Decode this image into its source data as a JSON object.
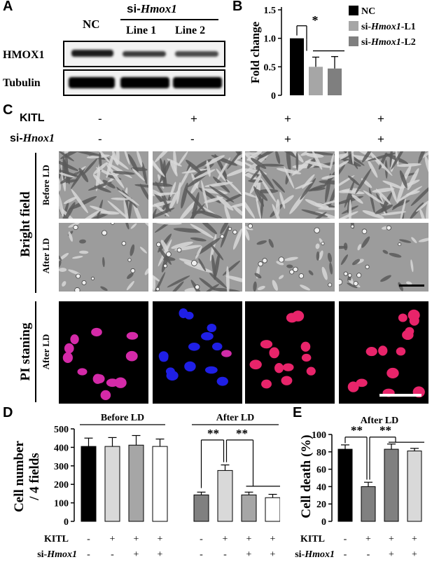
{
  "panelA": {
    "letter": "A",
    "nc": "NC",
    "si_prefix": "si-",
    "si_gene": "Hmox1",
    "line1": "Line 1",
    "line2": "Line 2",
    "row1": "HMOX1",
    "row2": "Tubulin"
  },
  "panelB": {
    "letter": "B",
    "chart_data": {
      "type": "bar",
      "ylabel": "Fold change",
      "ylim": [
        0,
        1.5
      ],
      "yticks": [
        "0",
        "0.5",
        "1.0",
        "1.5"
      ],
      "categories": [
        "NC",
        "si-Hmox1-L1",
        "si-Hmox1-L2"
      ],
      "values": [
        1.0,
        0.5,
        0.47
      ],
      "errors": [
        0.0,
        0.17,
        0.21
      ],
      "colors": [
        "#000000",
        "#a6a6a6",
        "#7f7f7f"
      ],
      "legend": [
        {
          "prefix": "NC",
          "gene": "",
          "suffix": ""
        },
        {
          "prefix": "si-",
          "gene": "Hmox1",
          "suffix": "-L1"
        },
        {
          "prefix": "si-",
          "gene": "Hmox1",
          "suffix": "-L2"
        }
      ],
      "annotation": "*"
    }
  },
  "panelC": {
    "letter": "C",
    "kitl": "KITL",
    "si_prefix": "si-",
    "si_gene": "Hnox1",
    "kitl_signs": [
      "-",
      "+",
      "+",
      "+"
    ],
    "si_signs": [
      "-",
      "-",
      "+",
      "+"
    ],
    "bright_field": "Bright field",
    "before_ld": "Before LD",
    "after_ld": "After LD",
    "pi_staining": "PI staning",
    "pi_after_ld": "After LD"
  },
  "panelD": {
    "letter": "D",
    "chart_data": {
      "type": "bar",
      "ylabel_line1": "Cell number",
      "ylabel_line2": "/ 4 fields",
      "ylim": [
        0,
        500
      ],
      "yticks": [
        "0",
        "100",
        "200",
        "300",
        "400",
        "500"
      ],
      "groups": [
        "Before LD",
        "After LD"
      ],
      "before_values": [
        405,
        405,
        412,
        405
      ],
      "before_errors": [
        45,
        48,
        52,
        40
      ],
      "after_values": [
        143,
        275,
        143,
        128
      ],
      "after_errors": [
        15,
        30,
        15,
        18
      ],
      "before_colors": [
        "#000000",
        "#d9d9d9",
        "#a6a6a6",
        "#ffffff"
      ],
      "after_colors": [
        "#808080",
        "#d9d9d9",
        "#a6a6a6",
        "#ffffff"
      ],
      "annotations": [
        "**",
        "**"
      ],
      "kitl_label": "KITL",
      "si_prefix": "si-",
      "si_gene": "Hmox1",
      "kitl_signs": [
        "-",
        "+",
        "+",
        "+",
        "-",
        "+",
        "+",
        "+"
      ],
      "si_signs": [
        "-",
        "-",
        "+",
        "+",
        "-",
        "-",
        "+",
        "+"
      ]
    }
  },
  "panelE": {
    "letter": "E",
    "chart_data": {
      "type": "bar",
      "title": "After LD",
      "ylabel": "Cell death (%)",
      "ylim": [
        0,
        100
      ],
      "yticks": [
        "0",
        "20",
        "40",
        "60",
        "80",
        "100"
      ],
      "values": [
        83,
        40,
        83,
        81
      ],
      "errors": [
        5,
        5,
        6,
        3
      ],
      "colors": [
        "#000000",
        "#808080",
        "#808080",
        "#d9d9d9"
      ],
      "annotations": [
        "**",
        "**"
      ],
      "kitl_label": "KITL",
      "si_prefix": "si-",
      "si_gene": "Hmox1",
      "kitl_signs": [
        "-",
        "+",
        "+",
        "+"
      ],
      "si_signs": [
        "-",
        "-",
        "+",
        "+"
      ]
    }
  }
}
